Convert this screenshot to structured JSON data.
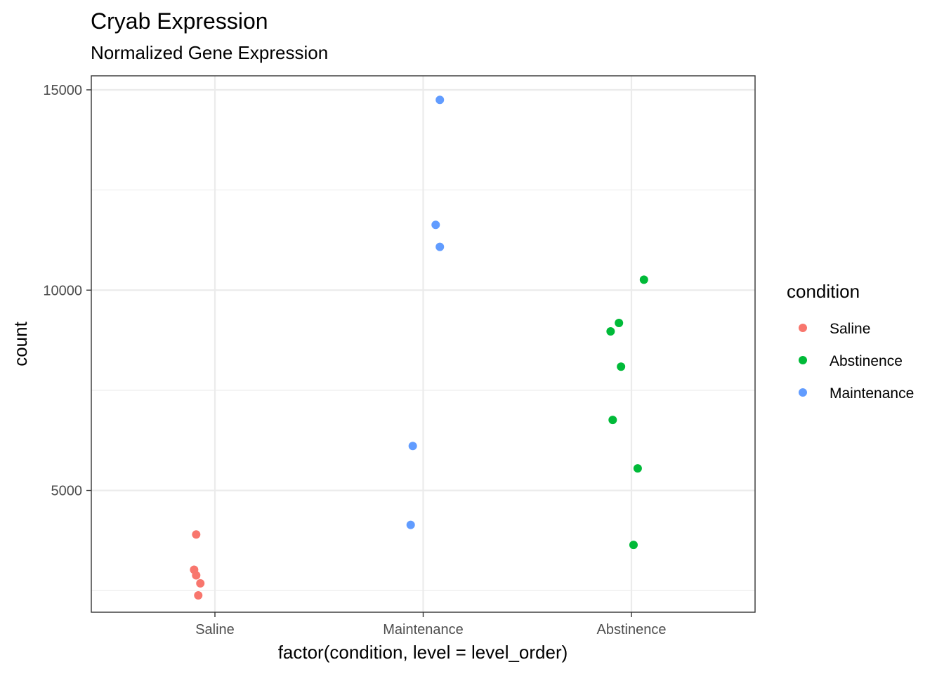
{
  "chart_data": {
    "type": "scatter",
    "title": "Cryab Expression",
    "subtitle": "Normalized Gene Expression",
    "xlabel": "factor(condition, level = level_order)",
    "ylabel": "count",
    "categories": [
      "Saline",
      "Maintenance",
      "Abstinence"
    ],
    "ylim": [
      1960,
      15350
    ],
    "yticks": [
      5000,
      10000,
      15000
    ],
    "yticks_labels": [
      "5000",
      "10000",
      "15000"
    ],
    "grid": true,
    "legend": {
      "title": "condition",
      "position": "right",
      "entries": [
        {
          "name": "Saline",
          "color": "#F8766D"
        },
        {
          "name": "Abstinence",
          "color": "#00BA38"
        },
        {
          "name": "Maintenance",
          "color": "#619CFF"
        }
      ]
    },
    "series": [
      {
        "name": "Saline",
        "color": "#F8766D",
        "points": [
          {
            "x": "Saline",
            "jitter": -0.09,
            "y": 3900
          },
          {
            "x": "Saline",
            "jitter": -0.1,
            "y": 3020
          },
          {
            "x": "Saline",
            "jitter": -0.09,
            "y": 2880
          },
          {
            "x": "Saline",
            "jitter": -0.07,
            "y": 2680
          },
          {
            "x": "Saline",
            "jitter": -0.08,
            "y": 2380
          }
        ]
      },
      {
        "name": "Maintenance",
        "color": "#619CFF",
        "points": [
          {
            "x": "Maintenance",
            "jitter": 0.08,
            "y": 14750
          },
          {
            "x": "Maintenance",
            "jitter": 0.06,
            "y": 11630
          },
          {
            "x": "Maintenance",
            "jitter": 0.08,
            "y": 11080
          },
          {
            "x": "Maintenance",
            "jitter": -0.05,
            "y": 6110
          },
          {
            "x": "Maintenance",
            "jitter": -0.06,
            "y": 4140
          }
        ]
      },
      {
        "name": "Abstinence",
        "color": "#00BA38",
        "points": [
          {
            "x": "Abstinence",
            "jitter": 0.06,
            "y": 10260
          },
          {
            "x": "Abstinence",
            "jitter": -0.06,
            "y": 9180
          },
          {
            "x": "Abstinence",
            "jitter": -0.1,
            "y": 8970
          },
          {
            "x": "Abstinence",
            "jitter": -0.05,
            "y": 8090
          },
          {
            "x": "Abstinence",
            "jitter": -0.09,
            "y": 6760
          },
          {
            "x": "Abstinence",
            "jitter": 0.03,
            "y": 5550
          },
          {
            "x": "Abstinence",
            "jitter": 0.01,
            "y": 3640
          }
        ]
      }
    ]
  }
}
